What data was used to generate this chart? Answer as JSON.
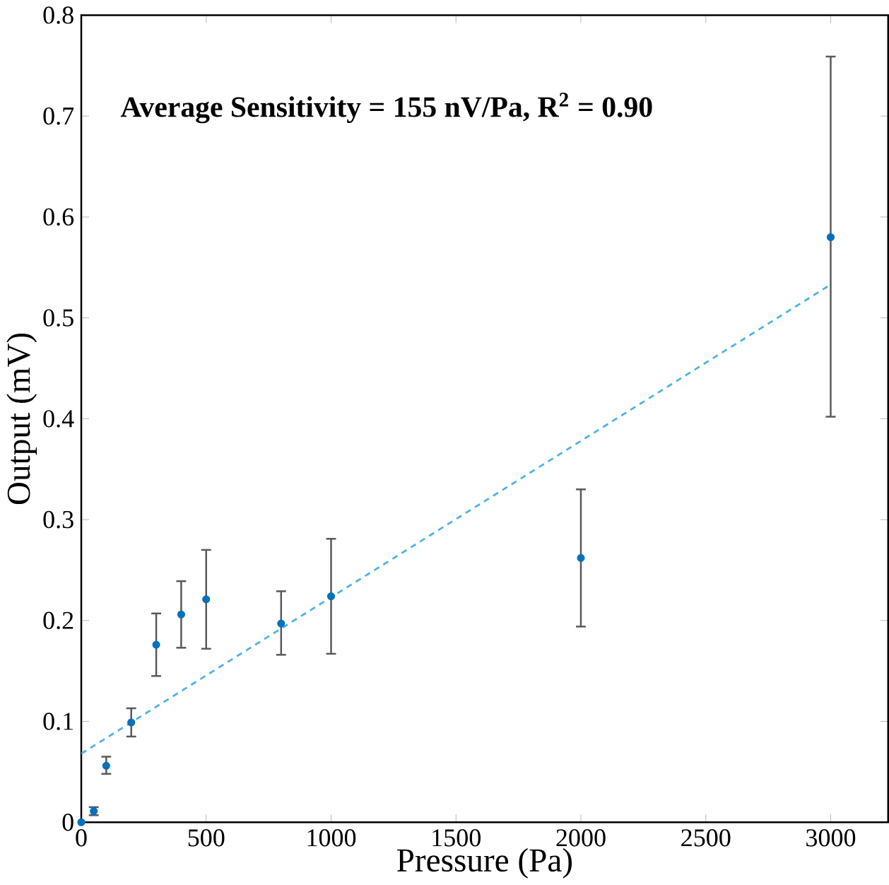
{
  "chart_data": {
    "type": "scatter",
    "xlabel": "Pressure (Pa)",
    "ylabel": "Output (mV)",
    "annotations": [
      "**Average Sensitivity = 155 nV/Pa, R$^{2}$ = 0.90**"
    ],
    "xlim": [
      0,
      3230
    ],
    "ylim": [
      0,
      0.8
    ],
    "xticks": [
      0,
      500,
      1000,
      1500,
      2000,
      2500,
      3000
    ],
    "yticks": [
      0,
      0.1,
      0.2,
      0.3,
      0.4,
      0.5,
      0.6,
      0.7,
      0.8
    ],
    "marker": "circle",
    "series": [
      {
        "color": "#0072bd",
        "x": [
          0,
          50,
          100,
          200,
          300,
          400,
          500,
          800,
          1000,
          2000,
          3000
        ],
        "values": [
          0,
          0.011,
          0.056,
          0.099,
          0.176,
          0.206,
          0.221,
          0.197,
          0.224,
          0.262,
          0.58
        ],
        "errors": [
          null,
          0.004,
          [
            0.048,
            0.065
          ],
          [
            0.085,
            0.113
          ],
          [
            0.145,
            0.207
          ],
          [
            0.173,
            0.239
          ],
          [
            0.172,
            0.27
          ],
          [
            0.166,
            0.229
          ],
          [
            0.167,
            0.281
          ],
          [
            0.194,
            0.33
          ],
          [
            0.402,
            0.759
          ]
        ]
      },
      {
        "type": "line",
        "color": "#4db3e6",
        "line_style": "dashed",
        "marker": "none",
        "x": [
          0,
          3000
        ],
        "values": [
          0.068,
          0.533
        ]
      }
    ]
  }
}
